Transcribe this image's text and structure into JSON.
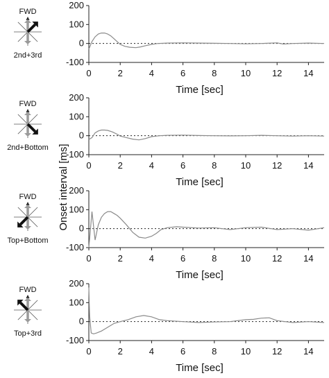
{
  "figure": {
    "ylabel": "Onset interval [ms]"
  },
  "chart_data": [
    {
      "type": "line",
      "condition": "2nd+3rd",
      "fwd_label": "FWD",
      "xlabel": "Time [sec]",
      "xlim": [
        0,
        15
      ],
      "ylim": [
        -100,
        200
      ],
      "xticks": [
        0,
        2,
        4,
        6,
        8,
        10,
        12,
        14
      ],
      "yticks": [
        -100,
        0,
        100,
        200
      ],
      "reference_line": 0,
      "series": [
        {
          "x": [
            0,
            0.2,
            0.4,
            0.6,
            0.8,
            1.0,
            1.2,
            1.4,
            1.6,
            1.8,
            2.0,
            2.3,
            2.6,
            3.0,
            3.3,
            3.6,
            4.0,
            4.4,
            5.0,
            6.0,
            7.0,
            8.0,
            9.0,
            10.0,
            11.0,
            12.0,
            12.4,
            13.0,
            14.0,
            15.0
          ],
          "y": [
            -30,
            10,
            35,
            50,
            55,
            55,
            50,
            40,
            25,
            10,
            -5,
            -15,
            -20,
            -22,
            -18,
            -12,
            -5,
            0,
            2,
            3,
            2,
            1,
            0,
            -2,
            0,
            3,
            -3,
            0,
            2,
            0
          ]
        }
      ],
      "arrow": {
        "gray_arrows": [
          "up",
          "down"
        ],
        "black_arrow": "up-right"
      }
    },
    {
      "type": "line",
      "condition": "2nd+Bottom",
      "fwd_label": "FWD",
      "xlabel": "Time [sec]",
      "xlim": [
        0,
        15
      ],
      "ylim": [
        -100,
        200
      ],
      "xticks": [
        0,
        2,
        4,
        6,
        8,
        10,
        12,
        14
      ],
      "yticks": [
        -100,
        0,
        100,
        200
      ],
      "reference_line": 0,
      "series": [
        {
          "x": [
            0,
            0.2,
            0.4,
            0.6,
            0.8,
            1.0,
            1.2,
            1.5,
            1.8,
            2.0,
            2.4,
            2.8,
            3.2,
            3.6,
            4.0,
            4.5,
            5.0,
            6.0,
            7.0,
            8.0,
            9.0,
            10.0,
            11.0,
            12.0,
            13.0,
            14.0,
            15.0
          ],
          "y": [
            -20,
            -10,
            15,
            25,
            30,
            30,
            28,
            20,
            8,
            -2,
            -10,
            -18,
            -22,
            -15,
            -5,
            0,
            2,
            3,
            1,
            0,
            -1,
            0,
            2,
            0,
            -2,
            0,
            -2
          ]
        }
      ],
      "arrow": {
        "gray_arrows": [
          "up",
          "down"
        ],
        "black_arrow": "down-right"
      }
    },
    {
      "type": "line",
      "condition": "Top+Bottom",
      "fwd_label": "FWD",
      "xlabel": "Time [sec]",
      "xlim": [
        0,
        15
      ],
      "ylim": [
        -100,
        200
      ],
      "xticks": [
        0,
        2,
        4,
        6,
        8,
        10,
        12,
        14
      ],
      "yticks": [
        -100,
        0,
        100,
        200
      ],
      "reference_line": 0,
      "series": [
        {
          "x": [
            0,
            0.2,
            0.4,
            0.6,
            0.8,
            1.0,
            1.2,
            1.4,
            1.6,
            1.8,
            2.0,
            2.4,
            2.8,
            3.2,
            3.6,
            4.0,
            4.3,
            4.6,
            5.0,
            5.6,
            6.0,
            7.0,
            8.0,
            9.0,
            10.0,
            11.0,
            12.0,
            13.0,
            14.0,
            15.0
          ],
          "y": [
            -100,
            90,
            -60,
            20,
            60,
            80,
            90,
            90,
            80,
            70,
            55,
            20,
            -20,
            -45,
            -50,
            -40,
            -25,
            -5,
            5,
            10,
            8,
            3,
            5,
            -5,
            5,
            8,
            -5,
            0,
            -8,
            5
          ]
        }
      ],
      "arrow": {
        "gray_arrows": [
          "up",
          "down"
        ],
        "black_arrow": "down-left"
      }
    },
    {
      "type": "line",
      "condition": "Top+3rd",
      "fwd_label": "FWD",
      "xlabel": "Time [sec]",
      "xlim": [
        0,
        15
      ],
      "ylim": [
        -100,
        200
      ],
      "xticks": [
        0,
        2,
        4,
        6,
        8,
        10,
        12,
        14
      ],
      "yticks": [
        -100,
        0,
        100,
        200
      ],
      "reference_line": 0,
      "series": [
        {
          "x": [
            0,
            0.05,
            0.15,
            0.3,
            0.5,
            0.8,
            1.0,
            1.3,
            1.6,
            2.0,
            2.5,
            3.0,
            3.5,
            4.0,
            4.5,
            5.0,
            6.0,
            7.0,
            8.0,
            9.0,
            10.0,
            10.5,
            11.0,
            11.5,
            12.0,
            13.0,
            14.0,
            15.0
          ],
          "y": [
            180,
            30,
            -60,
            -65,
            -60,
            -50,
            -40,
            -25,
            -10,
            0,
            10,
            25,
            32,
            25,
            10,
            5,
            0,
            -5,
            -2,
            0,
            10,
            12,
            18,
            20,
            5,
            -5,
            0,
            -5
          ]
        }
      ],
      "arrow": {
        "gray_arrows": [
          "up",
          "down"
        ],
        "black_arrow": "up-left"
      }
    }
  ]
}
